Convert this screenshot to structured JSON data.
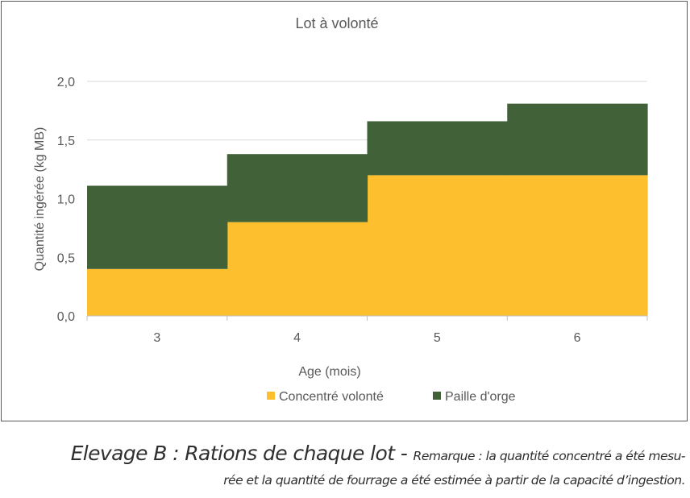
{
  "chart_data": {
    "type": "area",
    "stacked": true,
    "step": true,
    "title": "Lot à volonté",
    "xlabel": "Age (mois)",
    "ylabel": "Quantité ingérée (kg MB)",
    "categories": [
      "3",
      "4",
      "5",
      "6"
    ],
    "ylim": [
      0,
      2.0
    ],
    "yticks": [
      "0,0",
      "0,5",
      "1,0",
      "1,5",
      "2,0"
    ],
    "grid": true,
    "legend_position": "bottom",
    "series": [
      {
        "name": "Concentré volonté",
        "values": [
          0.4,
          0.8,
          1.2,
          1.2
        ],
        "color": "#fdbf2d"
      },
      {
        "name": "Paille d'orge",
        "values": [
          0.71,
          0.58,
          0.46,
          0.61
        ],
        "color": "#416139"
      }
    ]
  },
  "caption": {
    "title": "Elevage B : Rations de chaque lot - ",
    "remark_line1": "Remarque : la quantité concentré a été mesu-",
    "remark_line2": "rée et la quantité de fourrage a été estimée à partir de la capacité d’ingestion."
  }
}
